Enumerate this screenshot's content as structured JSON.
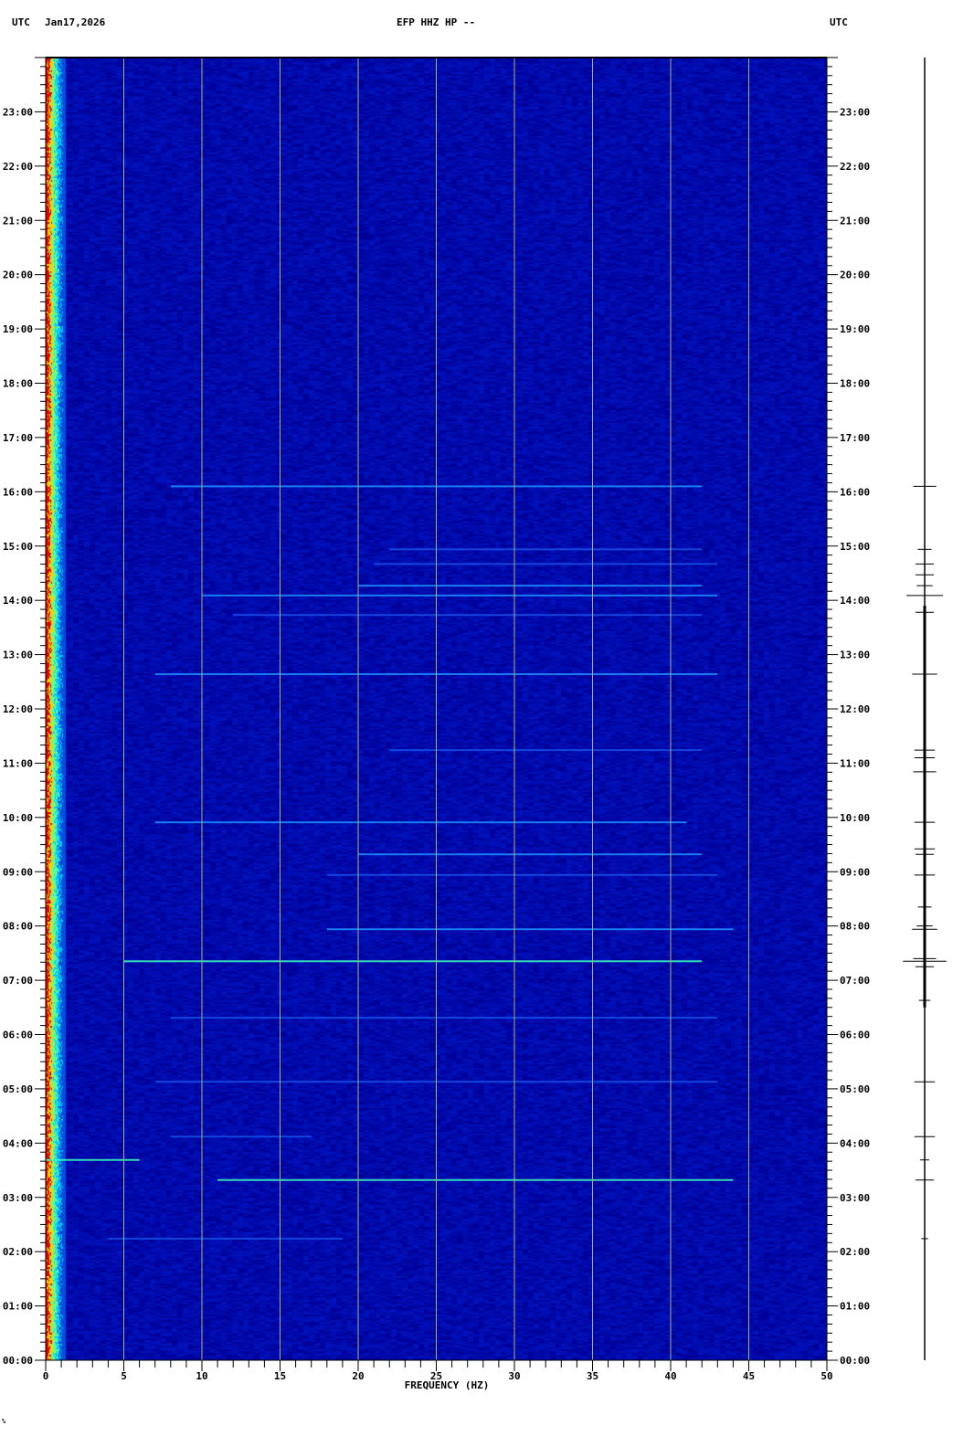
{
  "header": {
    "left_tz": "UTC",
    "date": "Jan17,2026",
    "title": "EFP HHZ HP --",
    "right_tz": "UTC"
  },
  "footer_mark": "%",
  "chart_data": {
    "type": "heatmap",
    "title": "EFP HHZ HP --",
    "xlabel": "FREQUENCY (HZ)",
    "ylabel": "",
    "xlim": [
      0,
      50
    ],
    "ylim_hours": [
      0,
      24
    ],
    "x_ticks": [
      "0",
      "5",
      "10",
      "15",
      "20",
      "25",
      "30",
      "35",
      "40",
      "45",
      "50"
    ],
    "y_ticks": [
      "00:00",
      "01:00",
      "02:00",
      "03:00",
      "04:00",
      "05:00",
      "06:00",
      "07:00",
      "08:00",
      "09:00",
      "10:00",
      "11:00",
      "12:00",
      "13:00",
      "14:00",
      "15:00",
      "16:00",
      "17:00",
      "18:00",
      "19:00",
      "20:00",
      "21:00",
      "22:00",
      "23:00"
    ],
    "grid": true,
    "colors": {
      "background": "#0a14a0",
      "low": "#0000b4",
      "grid": "#b4aa6e",
      "high": "#ff2000",
      "mid": "#00e0ff",
      "trace": "#000000"
    },
    "events": [
      {
        "time_h": 16.1,
        "f_min": 8,
        "f_max": 42,
        "intensity": 0.55
      },
      {
        "time_h": 14.94,
        "f_min": 22,
        "f_max": 42,
        "intensity": 0.5
      },
      {
        "time_h": 14.67,
        "f_min": 21,
        "f_max": 43,
        "intensity": 0.45
      },
      {
        "time_h": 14.27,
        "f_min": 20,
        "f_max": 42,
        "intensity": 0.55
      },
      {
        "time_h": 14.09,
        "f_min": 10,
        "f_max": 43,
        "intensity": 0.7
      },
      {
        "time_h": 13.73,
        "f_min": 12,
        "f_max": 42,
        "intensity": 0.35
      },
      {
        "time_h": 12.64,
        "f_min": 7,
        "f_max": 43,
        "intensity": 0.6
      },
      {
        "time_h": 11.24,
        "f_min": 22,
        "f_max": 42,
        "intensity": 0.45
      },
      {
        "time_h": 9.91,
        "f_min": 7,
        "f_max": 41,
        "intensity": 0.6
      },
      {
        "time_h": 9.32,
        "f_min": 20,
        "f_max": 42,
        "intensity": 0.55
      },
      {
        "time_h": 8.94,
        "f_min": 18,
        "f_max": 43,
        "intensity": 0.35
      },
      {
        "time_h": 7.94,
        "f_min": 18,
        "f_max": 44,
        "intensity": 0.75
      },
      {
        "time_h": 7.35,
        "f_min": 5,
        "f_max": 42,
        "intensity": 0.8
      },
      {
        "time_h": 6.31,
        "f_min": 8,
        "f_max": 43,
        "intensity": 0.45
      },
      {
        "time_h": 5.13,
        "f_min": 7,
        "f_max": 43,
        "intensity": 0.5
      },
      {
        "time_h": 4.12,
        "f_min": 8,
        "f_max": 17,
        "intensity": 0.35
      },
      {
        "time_h": 3.69,
        "f_min": 0,
        "f_max": 6,
        "intensity": 0.9
      },
      {
        "time_h": 3.32,
        "f_min": 11,
        "f_max": 44,
        "intensity": 0.8
      },
      {
        "time_h": 2.24,
        "f_min": 4,
        "f_max": 19,
        "intensity": 0.4
      }
    ],
    "trace_spikes": [
      {
        "time_h": 16.1,
        "amp": 0.5
      },
      {
        "time_h": 14.94,
        "amp": 0.3
      },
      {
        "time_h": 14.67,
        "amp": 0.4
      },
      {
        "time_h": 14.47,
        "amp": 0.4
      },
      {
        "time_h": 14.27,
        "amp": 0.35
      },
      {
        "time_h": 14.09,
        "amp": 0.8
      },
      {
        "time_h": 13.78,
        "amp": 0.4
      },
      {
        "time_h": 12.64,
        "amp": 0.55
      },
      {
        "time_h": 11.24,
        "amp": 0.45
      },
      {
        "time_h": 11.1,
        "amp": 0.45
      },
      {
        "time_h": 10.84,
        "amp": 0.5
      },
      {
        "time_h": 9.91,
        "amp": 0.45
      },
      {
        "time_h": 9.42,
        "amp": 0.45
      },
      {
        "time_h": 9.32,
        "amp": 0.4
      },
      {
        "time_h": 8.94,
        "amp": 0.45
      },
      {
        "time_h": 8.35,
        "amp": 0.3
      },
      {
        "time_h": 8.0,
        "amp": 0.35
      },
      {
        "time_h": 7.94,
        "amp": 0.55
      },
      {
        "time_h": 7.4,
        "amp": 0.5
      },
      {
        "time_h": 7.35,
        "amp": 0.95
      },
      {
        "time_h": 7.25,
        "amp": 0.4
      },
      {
        "time_h": 6.63,
        "amp": 0.25
      },
      {
        "time_h": 5.13,
        "amp": 0.45
      },
      {
        "time_h": 4.12,
        "amp": 0.45
      },
      {
        "time_h": 3.69,
        "amp": 0.2
      },
      {
        "time_h": 3.32,
        "amp": 0.4
      },
      {
        "time_h": 2.24,
        "amp": 0.15
      }
    ]
  }
}
